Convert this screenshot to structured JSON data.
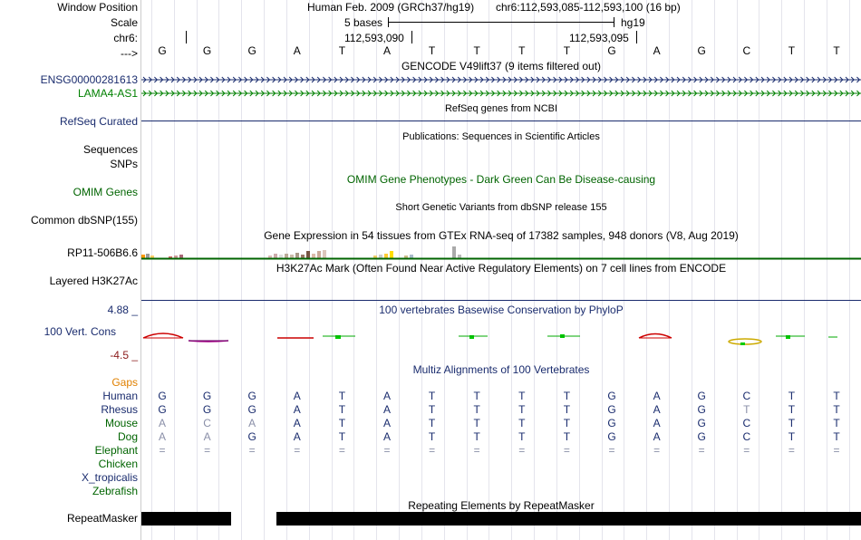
{
  "labels": {
    "window_position": "Window Position",
    "scale": "Scale",
    "chrom": "chr6:",
    "arrow": "--->",
    "ensg": "ENSG00000281613",
    "lama4": "LAMA4-AS1",
    "refseq": "RefSeq Curated",
    "sequences": "Sequences",
    "snps": "SNPs",
    "omim": "OMIM Genes",
    "dbsnp": "Common dbSNP(155)",
    "rp11": "RP11-506B6.6",
    "h3k27ac": "Layered H3K27Ac",
    "cons_max": "4.88 _",
    "cons": "100 Vert. Cons",
    "cons_min": "-4.5 _",
    "gaps": "Gaps",
    "repeatmasker": "RepeatMasker"
  },
  "species": [
    "Human",
    "Rhesus",
    "Mouse",
    "Dog",
    "Elephant",
    "Chicken",
    "X_tropicalis",
    "Zebrafish"
  ],
  "header": {
    "assembly": "Human Feb. 2009 (GRCh37/hg19)",
    "position": "chr6:112,593,085-112,593,100 (16 bp)",
    "scale_text": "5 bases",
    "scale_db": "hg19",
    "coord1": "112,593,090",
    "coord2": "112,593,095"
  },
  "titles": {
    "gencode": "GENCODE V49lift37 (9 items filtered out)",
    "refseq": "RefSeq genes from NCBI",
    "publications": "Publications: Sequences in Scientific Articles",
    "omim": "OMIM Gene Phenotypes - Dark Green Can Be Disease-causing",
    "dbsnp": "Short Genetic Variants from dbSNP release 155",
    "gtex": "Gene Expression in 54 tissues from GTEx RNA-seq of 17382 samples, 948 donors (V8, Aug 2019)",
    "h3k27ac": "H3K27Ac Mark (Often Found Near Active Regulatory Elements) on 7 cell lines from ENCODE",
    "phylop": "100 vertebrates Basewise Conservation by PhyloP",
    "multiz": "Multiz Alignments of 100 Vertebrates",
    "repeatmasker": "Repeating Elements by RepeatMasker"
  },
  "sequence": [
    "G",
    "G",
    "G",
    "A",
    "T",
    "A",
    "T",
    "T",
    "T",
    "T",
    "G",
    "A",
    "G",
    "C",
    "T",
    "T"
  ],
  "alignment": {
    "human": [
      "G",
      "G",
      "G",
      "A",
      "T",
      "A",
      "T",
      "T",
      "T",
      "T",
      "G",
      "A",
      "G",
      "C",
      "T",
      "T"
    ],
    "rhesus": [
      "G",
      "G",
      "G",
      "A",
      "T",
      "A",
      "T",
      "T",
      "T",
      "T",
      "G",
      "A",
      "G",
      "T",
      "T",
      "T"
    ],
    "mouse": [
      "A",
      "C",
      "A",
      "A",
      "T",
      "A",
      "T",
      "T",
      "T",
      "T",
      "G",
      "A",
      "G",
      "C",
      "T",
      "T"
    ],
    "dog": [
      "A",
      "A",
      "G",
      "A",
      "T",
      "A",
      "T",
      "T",
      "T",
      "T",
      "G",
      "A",
      "G",
      "C",
      "T",
      "T"
    ],
    "elephant": [
      "=",
      "=",
      "=",
      "=",
      "=",
      "=",
      "=",
      "=",
      "=",
      "=",
      "=",
      "=",
      "=",
      "=",
      "=",
      "="
    ]
  },
  "mismatch_flags": {
    "rhesus": [
      0,
      0,
      0,
      0,
      0,
      0,
      0,
      0,
      0,
      0,
      0,
      0,
      0,
      1,
      0,
      0
    ],
    "mouse": [
      1,
      1,
      1,
      0,
      0,
      0,
      0,
      0,
      0,
      0,
      0,
      0,
      0,
      0,
      0,
      0
    ],
    "dog": [
      1,
      1,
      0,
      0,
      0,
      0,
      0,
      0,
      0,
      0,
      0,
      0,
      0,
      0,
      0,
      0
    ]
  },
  "colors": {
    "navy": "#1a2c6e",
    "green": "#006400",
    "gaps": "#e08000",
    "cons_max": "#1a2c6e",
    "cons_min": "#8b1a1a",
    "lama4": "#008000",
    "mismatch": "#8a8fa8"
  }
}
